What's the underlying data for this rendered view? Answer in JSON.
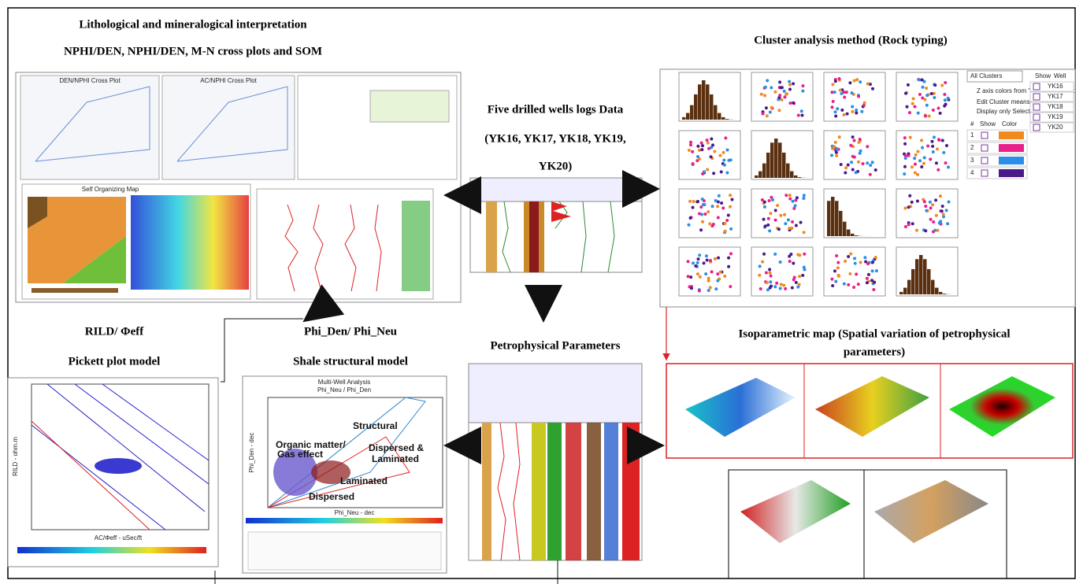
{
  "lithology": {
    "title_lines": [
      "Lithological and mineralogical interpretation",
      "NPHI/DEN, NPHI/DEN, M-N cross plots and SOM"
    ],
    "plots": [
      "DEN/NPHI Cross Plot",
      "AC/NPHI Cross Plot",
      "Self Organizing Map"
    ]
  },
  "wells": {
    "title_lines": [
      "Five drilled wells logs Data",
      "(YK16, YK17, YK18, YK19,",
      "YK20)"
    ]
  },
  "cluster": {
    "title": "Cluster analysis method (Rock typing)",
    "selector": "All Clusters",
    "options": [
      "Z axis colors from \"All Clusters\" set",
      "Edit Cluster means",
      "Display only Selected"
    ],
    "well_header": [
      "Show",
      "Well"
    ],
    "wells": [
      "YK16",
      "YK17",
      "YK18",
      "YK19",
      "YK20"
    ],
    "cluster_header": [
      "#",
      "Show",
      "Color"
    ],
    "clusters": [
      "1",
      "2",
      "3",
      "4"
    ]
  },
  "pickett": {
    "title_lines": [
      "RILD/ Φeff",
      "Pickett plot model"
    ],
    "y_label": "RILD - ohm.m",
    "x_label": "AC/Φeff - uSec/ft"
  },
  "shale": {
    "title_lines": [
      "Phi_Den/ Phi_Neu",
      "Shale structural model"
    ],
    "plot_title": "Multi-Well Analysis",
    "plot_subtitle": "Phi_Neu / Phi_Den",
    "annotations": [
      "Structural",
      "Dispersed &",
      "Laminated",
      "Laminated",
      "Organic matter/",
      "Gas effect",
      "Dispersed"
    ],
    "x_label": "Phi_Neu - dec",
    "y_label": "Phi_Den - dec"
  },
  "petrophysics": {
    "title": "Petrophysical Parameters"
  },
  "isoparametric": {
    "title_lines": [
      "Isoparametric map (Spatial variation of petrophysical",
      "parameters)"
    ]
  }
}
